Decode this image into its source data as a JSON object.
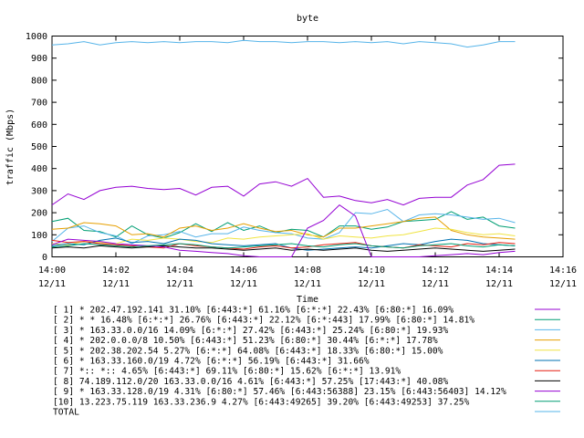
{
  "chart_data": {
    "type": "line",
    "title": "byte",
    "xlabel": "Time",
    "ylabel": "traffic (Mbps)",
    "ylim": [
      0,
      1000
    ],
    "yticks": [
      0,
      100,
      200,
      300,
      400,
      500,
      600,
      700,
      800,
      900,
      1000
    ],
    "xlim": [
      "14:00",
      "14:16"
    ],
    "xticks": [
      {
        "top": "14:00",
        "bottom": "12/11"
      },
      {
        "top": "14:02",
        "bottom": "12/11"
      },
      {
        "top": "14:04",
        "bottom": "12/11"
      },
      {
        "top": "14:06",
        "bottom": "12/11"
      },
      {
        "top": "14:08",
        "bottom": "12/11"
      },
      {
        "top": "14:10",
        "bottom": "12/11"
      },
      {
        "top": "14:12",
        "bottom": "12/11"
      },
      {
        "top": "14:14",
        "bottom": "12/11"
      },
      {
        "top": "14:16",
        "bottom": "12/11"
      }
    ],
    "grid": false,
    "legend_position": "bottom",
    "x": [
      "14:00:00",
      "14:00:30",
      "14:01:00",
      "14:01:30",
      "14:02:00",
      "14:02:30",
      "14:03:00",
      "14:03:30",
      "14:04:00",
      "14:04:30",
      "14:05:00",
      "14:05:30",
      "14:06:00",
      "14:06:30",
      "14:07:00",
      "14:07:30",
      "14:08:00",
      "14:08:30",
      "14:09:00",
      "14:09:30",
      "14:10:00",
      "14:10:30",
      "14:11:00",
      "14:11:30",
      "14:12:00",
      "14:12:30",
      "14:13:00",
      "14:13:30",
      "14:14:00",
      "14:14:30"
    ],
    "series": [
      {
        "name": "[ 1] * 202.47.192.141 31.10% [6:443:*] 61.16% [6:*:*] 22.43% [6:80:*] 16.09%",
        "color": "#9400d3",
        "values": [
          235,
          285,
          260,
          300,
          315,
          320,
          310,
          305,
          310,
          280,
          315,
          320,
          275,
          330,
          340,
          320,
          355,
          270,
          275,
          255,
          245,
          260,
          235,
          265,
          270,
          270,
          325,
          350,
          415,
          420
        ]
      },
      {
        "name": "[ 2] * * 16.48% [6:*:*] 26.76% [6:443:*] 22.12% [6:*:443] 17.99% [6:80:*] 14.81%",
        "color": "#009e73",
        "values": [
          160,
          175,
          120,
          115,
          90,
          140,
          100,
          85,
          110,
          150,
          115,
          155,
          120,
          140,
          110,
          125,
          120,
          90,
          140,
          140,
          125,
          135,
          160,
          165,
          170,
          205,
          170,
          180,
          140,
          130
        ]
      },
      {
        "name": "[ 3] * 163.33.0.0/16 14.09% [6:*:*] 27.42% [6:443:*] 25.24% [6:80:*] 19.93%",
        "color": "#56b4e9",
        "values": [
          70,
          130,
          140,
          110,
          95,
          60,
          95,
          100,
          115,
          90,
          105,
          105,
          135,
          120,
          110,
          105,
          85,
          80,
          110,
          200,
          195,
          215,
          160,
          190,
          195,
          190,
          180,
          170,
          175,
          155
        ]
      },
      {
        "name": "[ 4] * 202.0.0.0/8 10.50% [6:443:*] 51.23% [6:80:*] 30.44% [6:*:*] 17.78%",
        "color": "#e69f00",
        "values": [
          125,
          130,
          155,
          150,
          140,
          100,
          105,
          90,
          130,
          140,
          120,
          130,
          150,
          130,
          115,
          120,
          100,
          90,
          130,
          130,
          140,
          150,
          160,
          175,
          180,
          120,
          100,
          90,
          85,
          80
        ]
      },
      {
        "name": "[ 5] * 202.38.202.54 5.27% [6:*:*] 64.08% [6:443:*] 18.33% [6:80:*] 15.00%",
        "color": "#f0e442",
        "values": [
          60,
          55,
          70,
          65,
          60,
          80,
          75,
          85,
          80,
          70,
          65,
          85,
          80,
          90,
          95,
          100,
          105,
          80,
          95,
          90,
          85,
          95,
          100,
          115,
          130,
          125,
          110,
          100,
          105,
          95
        ]
      },
      {
        "name": "[ 6] * 163.33.160.0/19 4.72% [6:*:*] 56.19% [6:443:*] 31.66%",
        "color": "#0072b2",
        "values": [
          50,
          60,
          55,
          75,
          85,
          65,
          70,
          60,
          80,
          75,
          60,
          55,
          50,
          55,
          60,
          40,
          30,
          35,
          40,
          45,
          40,
          50,
          60,
          55,
          70,
          80,
          75,
          60,
          55,
          50
        ]
      },
      {
        "name": "[ 7] *:: *:: 4.65% [6:443:*] 69.11% [6:80:*] 15.62% [6:*:*] 13.91%",
        "color": "#e51e10",
        "values": [
          75,
          65,
          70,
          60,
          55,
          50,
          45,
          40,
          60,
          50,
          45,
          40,
          35,
          45,
          50,
          40,
          45,
          55,
          60,
          65,
          50,
          45,
          40,
          55,
          50,
          45,
          60,
          55,
          65,
          60
        ]
      },
      {
        "name": "[ 8] 74.189.112.0/20 163.33.0.0/16 4.61% [6:443:*] 57.25% [17:443:*] 40.08%",
        "color": "#000000",
        "values": [
          40,
          45,
          40,
          50,
          45,
          40,
          45,
          50,
          45,
          40,
          40,
          35,
          30,
          35,
          40,
          30,
          35,
          30,
          35,
          40,
          30,
          25,
          30,
          35,
          40,
          35,
          30,
          25,
          30,
          35
        ]
      },
      {
        "name": "[ 9] * 163.33.128.0/19 4.31% [6:80:*] 57.46% [6:443:56388] 23.15% [6:443:56403] 14.12%",
        "color": "#9400d3",
        "values": [
          55,
          80,
          75,
          70,
          60,
          55,
          50,
          45,
          30,
          25,
          20,
          15,
          5,
          0,
          0,
          0,
          130,
          165,
          235,
          185,
          0,
          0,
          0,
          0,
          5,
          10,
          15,
          10,
          20,
          25
        ]
      },
      {
        "name": "[10] 13.223.75.119 163.33.236.9 4.27% [6:443:49265] 39.20% [6:443:49253] 37.25%",
        "color": "#009e73",
        "values": [
          45,
          50,
          60,
          55,
          50,
          45,
          50,
          55,
          60,
          55,
          45,
          40,
          45,
          50,
          55,
          60,
          50,
          45,
          55,
          60,
          50,
          45,
          40,
          50,
          55,
          60,
          50,
          45,
          55,
          50
        ]
      },
      {
        "name": "TOTAL",
        "color": "#56b4e9",
        "values": [
          960,
          965,
          975,
          960,
          970,
          975,
          970,
          975,
          970,
          975,
          975,
          970,
          980,
          975,
          975,
          970,
          975,
          975,
          970,
          975,
          970,
          975,
          965,
          975,
          970,
          965,
          950,
          960,
          975,
          975
        ]
      }
    ]
  }
}
